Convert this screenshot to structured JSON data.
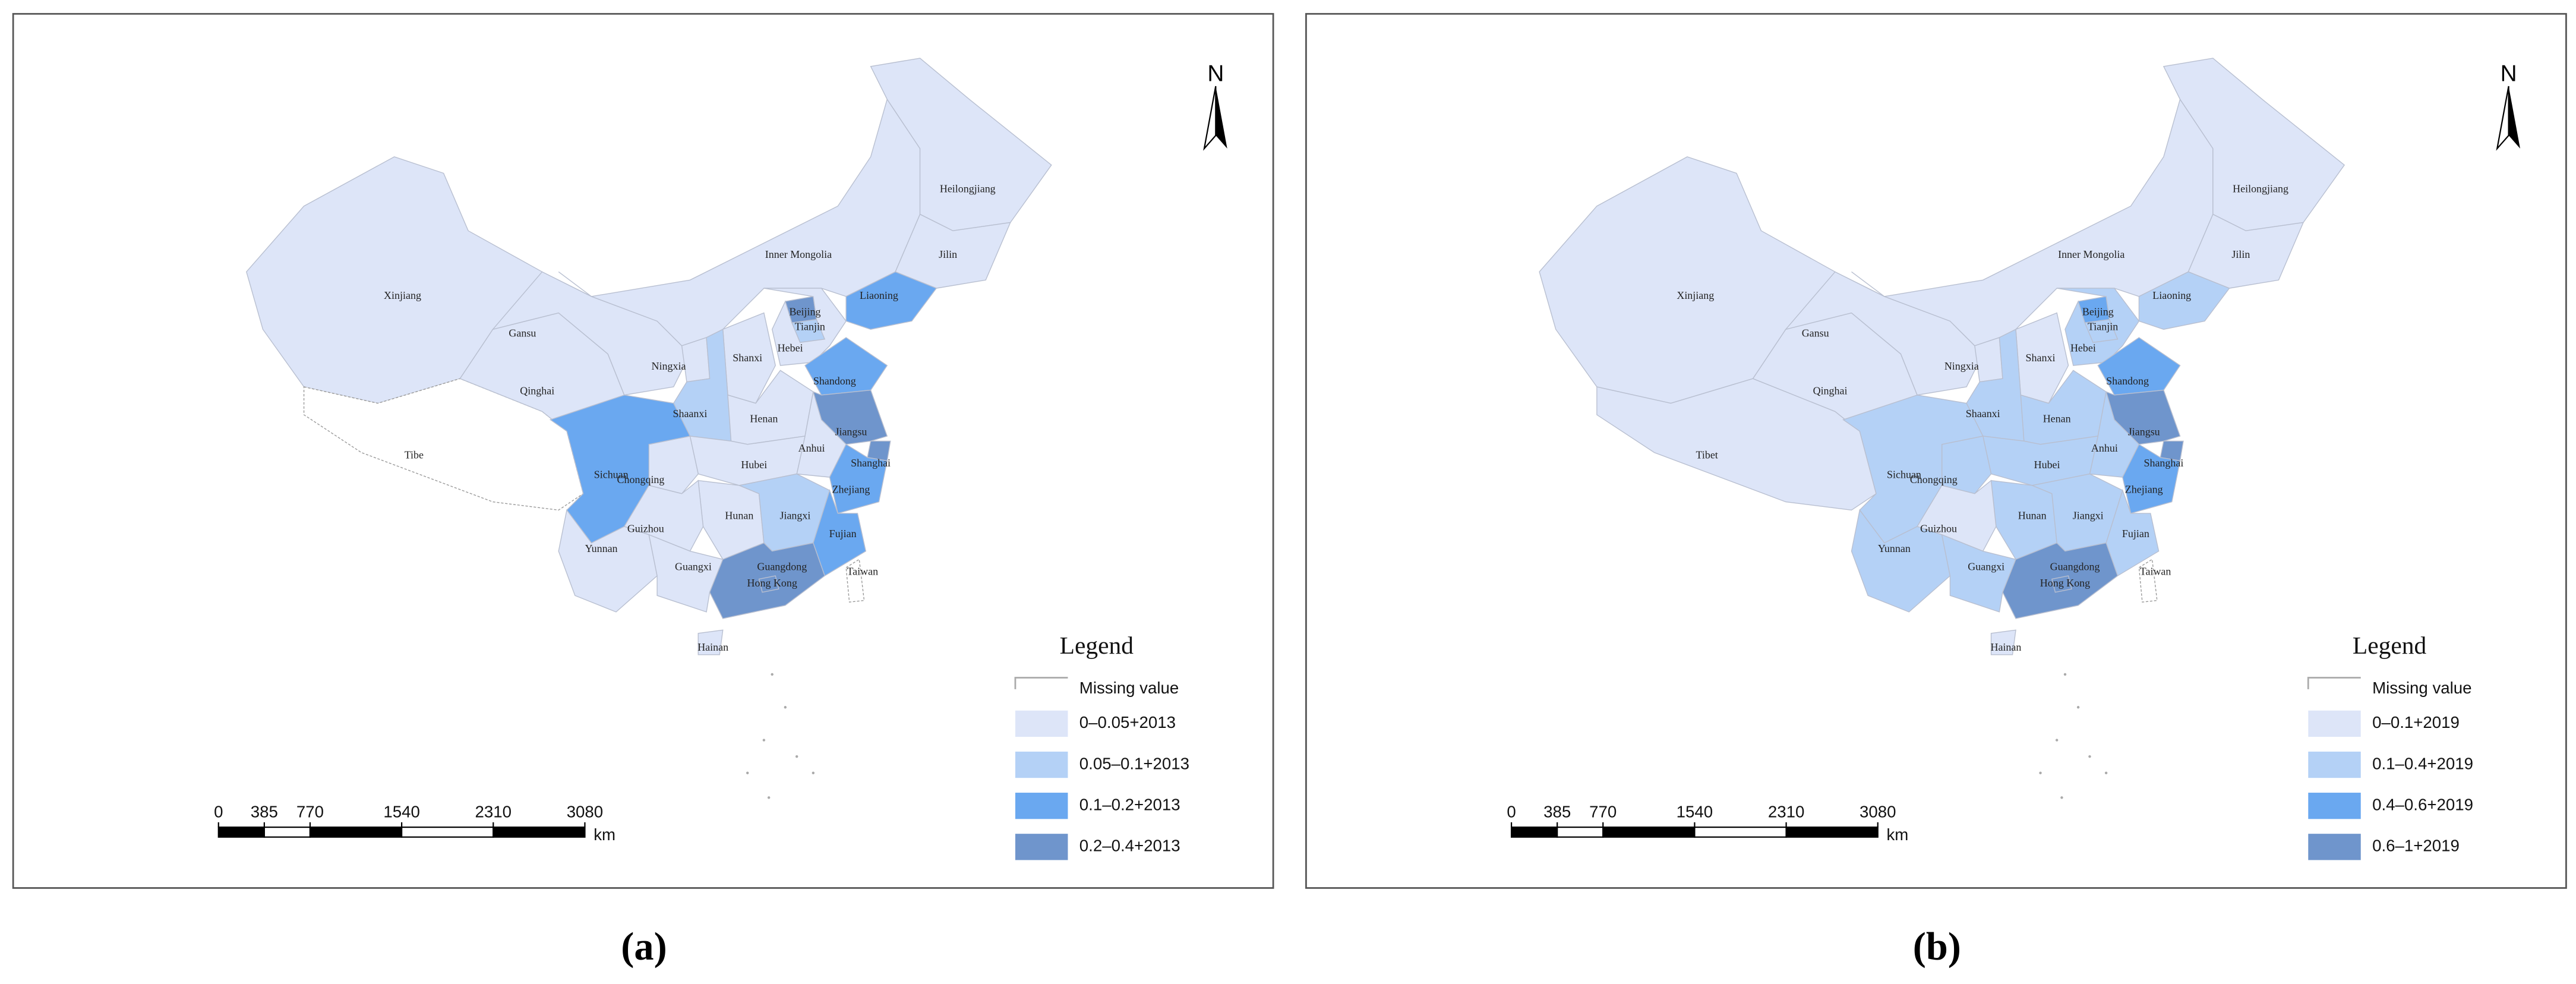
{
  "panels": [
    {
      "caption": "(a)",
      "north": "N",
      "legend": {
        "title": "Legend",
        "missing": "Missing value",
        "missing_color": "#ffffff",
        "bins": [
          {
            "label": "0–0.05+2013",
            "color": "#dde5f8"
          },
          {
            "label": "0.05–0.1+2013",
            "color": "#b4d1f6"
          },
          {
            "label": "0.1–0.2+2013",
            "color": "#6aa8f0"
          },
          {
            "label": "0.2–0.4+2013",
            "color": "#6f95cc"
          }
        ]
      },
      "scale_bar": {
        "ticks": [
          0,
          385,
          770,
          1540,
          2310,
          3080
        ],
        "unit": "km"
      },
      "regions": [
        {
          "name": "Xinjiang",
          "class": 0
        },
        {
          "name": "Tibe",
          "class": null
        },
        {
          "name": "Qinghai",
          "class": 0
        },
        {
          "name": "Gansu",
          "class": 0
        },
        {
          "name": "Inner Mongolia",
          "class": 0
        },
        {
          "name": "Heilongjiang",
          "class": 0
        },
        {
          "name": "Jilin",
          "class": 0
        },
        {
          "name": "Liaoning",
          "class": 2
        },
        {
          "name": "Beijing",
          "class": 3
        },
        {
          "name": "Tianjin",
          "class": 1
        },
        {
          "name": "Hebei",
          "class": 0
        },
        {
          "name": "Shanxi",
          "class": 0
        },
        {
          "name": "Shandong",
          "class": 2
        },
        {
          "name": "Ningxia",
          "class": 0
        },
        {
          "name": "Shaanxi",
          "class": 1
        },
        {
          "name": "Henan",
          "class": 0
        },
        {
          "name": "Jiangsu",
          "class": 3
        },
        {
          "name": "Anhui",
          "class": 0
        },
        {
          "name": "Shanghai",
          "class": 3
        },
        {
          "name": "Zhejiang",
          "class": 2
        },
        {
          "name": "Hubei",
          "class": 0
        },
        {
          "name": "Chongqing",
          "class": 0
        },
        {
          "name": "Sichuan",
          "class": 2
        },
        {
          "name": "Hunan",
          "class": 0
        },
        {
          "name": "Jiangxi",
          "class": 1
        },
        {
          "name": "Fujian",
          "class": 2
        },
        {
          "name": "Guizhou",
          "class": 0
        },
        {
          "name": "Yunnan",
          "class": 0
        },
        {
          "name": "Guangxi",
          "class": 0
        },
        {
          "name": "Guangdong",
          "class": 3
        },
        {
          "name": "Hainan",
          "class": 0
        },
        {
          "name": "Taiwan",
          "class": null
        },
        {
          "name": "Hong Kong",
          "class": 3
        }
      ]
    },
    {
      "caption": "(b)",
      "north": "N",
      "legend": {
        "title": "Legend",
        "missing": "Missing value",
        "missing_color": "#ffffff",
        "bins": [
          {
            "label": "0–0.1+2019",
            "color": "#dde5f8"
          },
          {
            "label": "0.1–0.4+2019",
            "color": "#b4d1f6"
          },
          {
            "label": "0.4–0.6+2019",
            "color": "#6aa8f0"
          },
          {
            "label": "0.6–1+2019",
            "color": "#6f95cc"
          }
        ]
      },
      "scale_bar": {
        "ticks": [
          0,
          385,
          770,
          1540,
          2310,
          3080
        ],
        "unit": "km"
      },
      "regions": [
        {
          "name": "Xinjiang",
          "class": 0
        },
        {
          "name": "Tibet",
          "class": 0
        },
        {
          "name": "Qinghai",
          "class": 0
        },
        {
          "name": "Gansu",
          "class": 0
        },
        {
          "name": "Inner Mongolia",
          "class": 0
        },
        {
          "name": "Heilongjiang",
          "class": 0
        },
        {
          "name": "Jilin",
          "class": 0
        },
        {
          "name": "Liaoning",
          "class": 1
        },
        {
          "name": "Beijing",
          "class": 2
        },
        {
          "name": "Tianjin",
          "class": 1
        },
        {
          "name": "Hebei",
          "class": 1
        },
        {
          "name": "Shanxi",
          "class": 0
        },
        {
          "name": "Shandong",
          "class": 2
        },
        {
          "name": "Ningxia",
          "class": 0
        },
        {
          "name": "Shaanxi",
          "class": 1
        },
        {
          "name": "Henan",
          "class": 1
        },
        {
          "name": "Jiangsu",
          "class": 3
        },
        {
          "name": "Anhui",
          "class": 1
        },
        {
          "name": "Shanghai",
          "class": 3
        },
        {
          "name": "Zhejiang",
          "class": 2
        },
        {
          "name": "Hubei",
          "class": 1
        },
        {
          "name": "Chongqing",
          "class": 1
        },
        {
          "name": "Sichuan",
          "class": 1
        },
        {
          "name": "Hunan",
          "class": 1
        },
        {
          "name": "Jiangxi",
          "class": 1
        },
        {
          "name": "Fujian",
          "class": 1
        },
        {
          "name": "Guizhou",
          "class": 0
        },
        {
          "name": "Yunnan",
          "class": 1
        },
        {
          "name": "Guangxi",
          "class": 1
        },
        {
          "name": "Guangdong",
          "class": 3
        },
        {
          "name": "Hainan",
          "class": 0
        },
        {
          "name": "Taiwan",
          "class": null
        },
        {
          "name": "Hong Kong",
          "class": 3
        }
      ]
    }
  ]
}
